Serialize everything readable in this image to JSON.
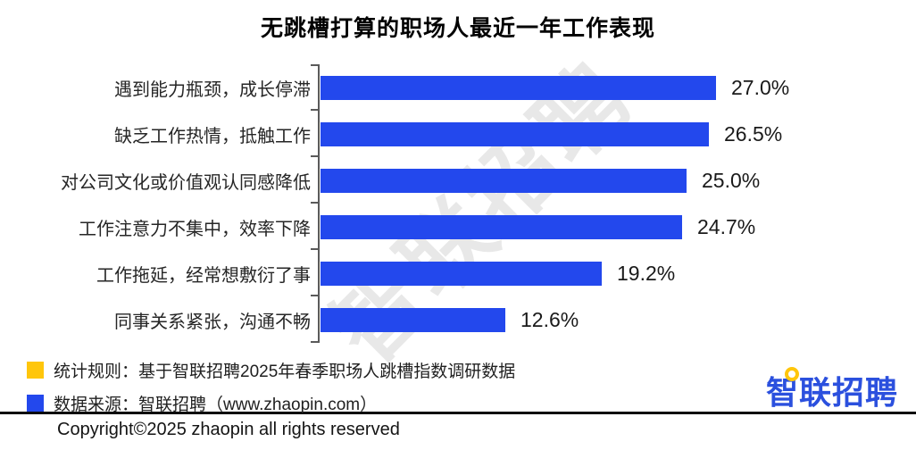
{
  "title": "无跳槽打算的职场人最近一年工作表现",
  "watermark": "智联招聘",
  "chart_data": {
    "type": "bar",
    "orientation": "horizontal",
    "title": "无跳槽打算的职场人最近一年工作表现",
    "categories": [
      "遇到能力瓶颈，成长停滞",
      "缺乏工作热情，抵触工作",
      "对公司文化或价值观认同感降低",
      "工作注意力不集中，效率下降",
      "工作拖延，经常想敷衍了事",
      "同事关系紧张，沟通不畅"
    ],
    "values": [
      27.0,
      26.5,
      25.0,
      24.7,
      19.2,
      12.6
    ],
    "value_labels": [
      "27.0%",
      "26.5%",
      "25.0%",
      "24.7%",
      "19.2%",
      "12.6%"
    ],
    "unit": "%",
    "xlim": [
      0,
      30
    ],
    "grid": false,
    "bar_color": "#2348ED",
    "axis_color": "#5a5a5a"
  },
  "legend": {
    "items": [
      {
        "label": "统计规则：基于智联招聘2025年春季职场人跳槽指数调研数据",
        "color": "#FFC60B"
      },
      {
        "label": "数据来源：智联招聘（www.zhaopin.com）",
        "color": "#2348ED"
      }
    ]
  },
  "logo": {
    "text": "智联招聘",
    "color": "#2B50DE",
    "accent_color": "#FFC60B"
  },
  "footer": {
    "copyright": "Copyright©2025 zhaopin all rights reserved"
  }
}
